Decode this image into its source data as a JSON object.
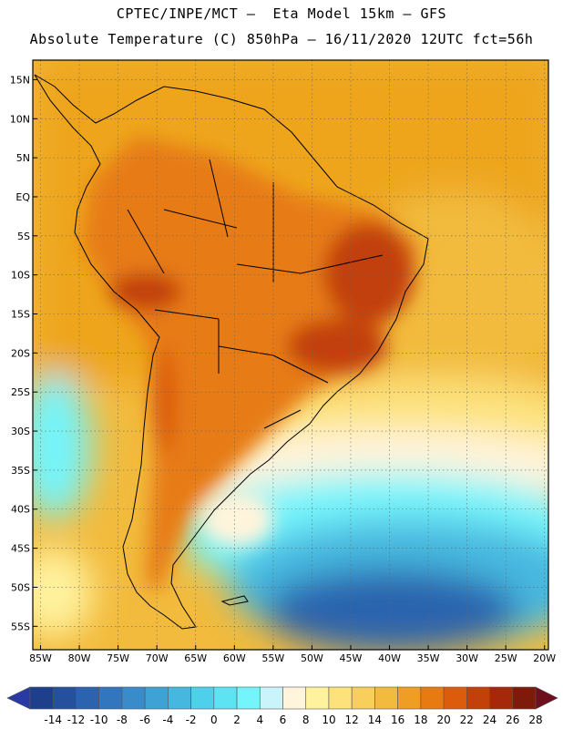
{
  "header": {
    "line1": "CPTEC/INPE/MCT –  Eta Model 15km – GFS",
    "line2": "Absolute Temperature (C) 850hPa – 16/11/2020 12UTC fct=56h"
  },
  "map": {
    "lon_range": [
      -86,
      -19.5
    ],
    "lat_range": [
      -58,
      17.5
    ],
    "lon_ticks": [
      {
        "value": -85,
        "label": "85W"
      },
      {
        "value": -80,
        "label": "80W"
      },
      {
        "value": -75,
        "label": "75W"
      },
      {
        "value": -70,
        "label": "70W"
      },
      {
        "value": -65,
        "label": "65W"
      },
      {
        "value": -60,
        "label": "60W"
      },
      {
        "value": -55,
        "label": "55W"
      },
      {
        "value": -50,
        "label": "50W"
      },
      {
        "value": -45,
        "label": "45W"
      },
      {
        "value": -40,
        "label": "40W"
      },
      {
        "value": -35,
        "label": "35W"
      },
      {
        "value": -30,
        "label": "30W"
      },
      {
        "value": -25,
        "label": "25W"
      },
      {
        "value": -20,
        "label": "20W"
      }
    ],
    "lat_ticks": [
      {
        "value": 15,
        "label": "15N"
      },
      {
        "value": 10,
        "label": "10N"
      },
      {
        "value": 5,
        "label": "5N"
      },
      {
        "value": 0,
        "label": "EQ"
      },
      {
        "value": -5,
        "label": "5S"
      },
      {
        "value": -10,
        "label": "10S"
      },
      {
        "value": -15,
        "label": "15S"
      },
      {
        "value": -20,
        "label": "20S"
      },
      {
        "value": -25,
        "label": "25S"
      },
      {
        "value": -30,
        "label": "30S"
      },
      {
        "value": -35,
        "label": "35S"
      },
      {
        "value": -40,
        "label": "40S"
      },
      {
        "value": -45,
        "label": "45S"
      },
      {
        "value": -50,
        "label": "50S"
      },
      {
        "value": -55,
        "label": "55S"
      }
    ],
    "fields": [
      {
        "name": "cold-southern-ocean",
        "temp": -6,
        "lon": -38,
        "lat": -50
      },
      {
        "name": "cool-south-atlantic",
        "temp": 2,
        "lon": -30,
        "lat": -43
      },
      {
        "name": "mild-subtropical-atlantic",
        "temp": 14,
        "lon": -30,
        "lat": -30
      },
      {
        "name": "warm-tropical-atlantic",
        "temp": 18,
        "lon": -32,
        "lat": -5
      },
      {
        "name": "hot-northeast-brazil",
        "temp": 24,
        "lon": -40,
        "lat": -8
      },
      {
        "name": "hot-southeast-brazil",
        "temp": 24,
        "lon": -46,
        "lat": -20
      },
      {
        "name": "cool-southeast-pacific",
        "temp": 4,
        "lon": -85,
        "lat": -30
      }
    ]
  },
  "colorbar": {
    "labels": [
      "-14",
      "-12",
      "-10",
      "-8",
      "-6",
      "-4",
      "-2",
      "0",
      "2",
      "4",
      "6",
      "8",
      "10",
      "12",
      "14",
      "16",
      "18",
      "20",
      "22",
      "24",
      "26",
      "28"
    ],
    "colors": [
      "#1d3f8c",
      "#24509e",
      "#2b63ae",
      "#3277bd",
      "#3a8bc9",
      "#3fa2d4",
      "#46b8df",
      "#4fd0ea",
      "#5ee3f3",
      "#74f4fb",
      "#c9f4fb",
      "#fff4dc",
      "#fff29e",
      "#fde27c",
      "#f8cf5a",
      "#f2bb3d",
      "#ee9e22",
      "#e77b12",
      "#dc5c0c",
      "#c2400a",
      "#a42809",
      "#7e1a0a"
    ],
    "under_color": "#2a3aa5",
    "over_color": "#6e0f1c"
  }
}
